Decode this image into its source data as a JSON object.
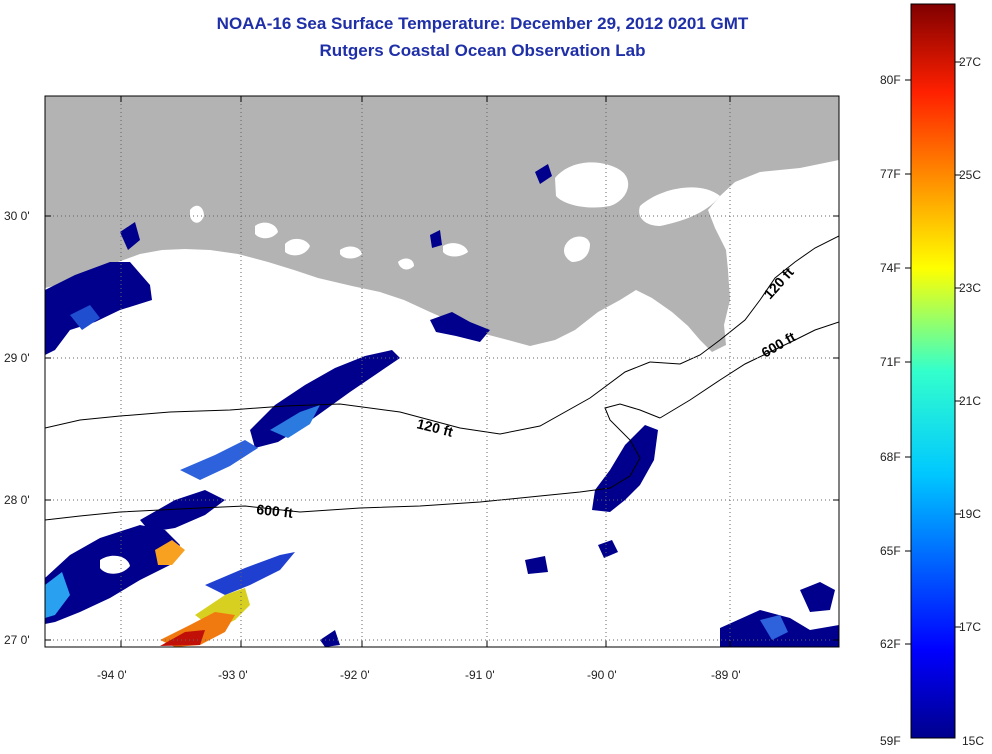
{
  "title": "NOAA-16 Sea Surface Temperature:  December 29, 2012 0201 GMT",
  "subtitle": "Rutgers Coastal Ocean Observation Lab",
  "latitude_labels": [
    "30 0'",
    "29 0'",
    "28 0'",
    "27 0'"
  ],
  "longitude_labels": [
    "-94 0'",
    "-93 0'",
    "-92 0'",
    "-91 0'",
    "-90 0'",
    "-89 0'"
  ],
  "contours": {
    "c120a": "120 ft",
    "c120b": "120 ft",
    "c600a": "600 ft",
    "c600b": "600 ft"
  },
  "colorbar": {
    "fahrenheit": [
      "80F",
      "77F",
      "74F",
      "71F",
      "68F",
      "65F",
      "62F",
      "59F"
    ],
    "celsius": [
      "27C",
      "25C",
      "23C",
      "21C",
      "19C",
      "17C",
      "15C"
    ]
  },
  "colors": {
    "land": "#b3b3b3",
    "title": "#1f2fa8",
    "cold": "#00008c",
    "warm": "#a00000"
  }
}
